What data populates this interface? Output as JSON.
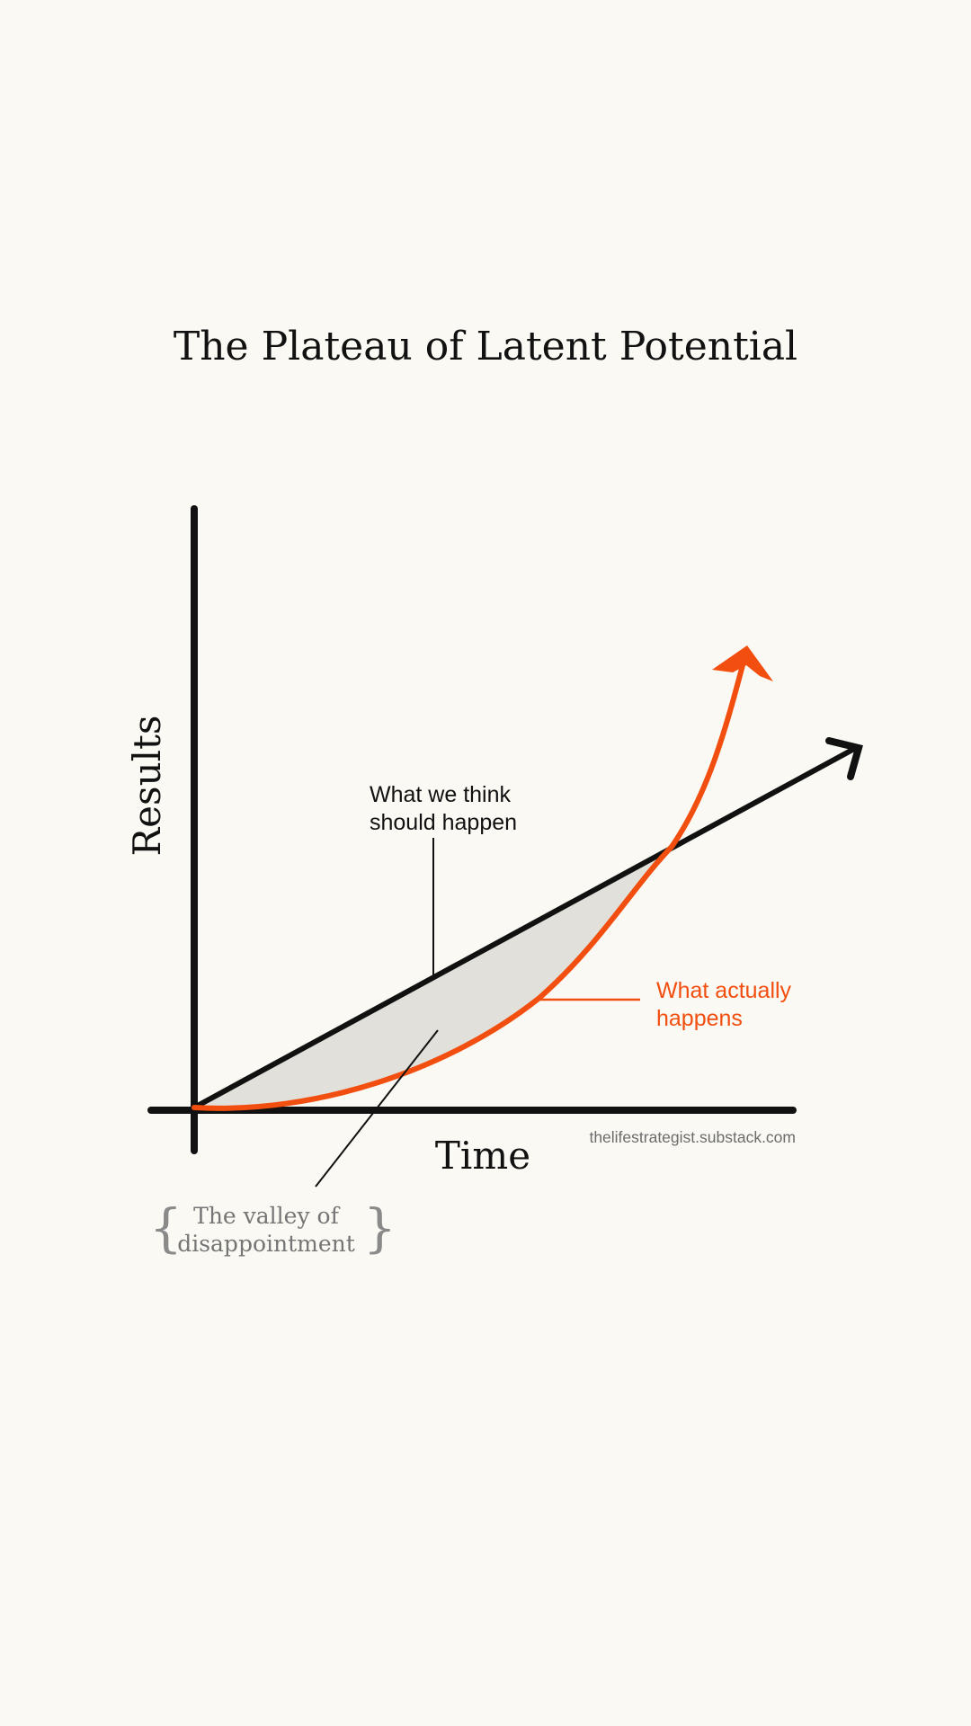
{
  "title": "The Plateau of Latent Potential",
  "axes": {
    "y_label": "Results",
    "x_label": "Time"
  },
  "annotations": {
    "expected_line1": "What we think",
    "expected_line2": "should happen",
    "actual_line1": "What actually",
    "actual_line2": "happens",
    "valley_line1": "The valley of",
    "valley_line2": "disappointment",
    "brace_left": "{",
    "brace_right": "}"
  },
  "credit": "thelifestrategist.substack.com",
  "colors": {
    "background": "#faf9f3",
    "axis": "#111111",
    "expected": "#111111",
    "actual": "#f24e0f",
    "valley_fill": "#e1e0da",
    "valley_text": "#757575",
    "credit": "#6c6c6c"
  },
  "icons": {
    "expected_arrow": "arrowhead-icon",
    "actual_arrow": "arrowhead-icon"
  }
}
